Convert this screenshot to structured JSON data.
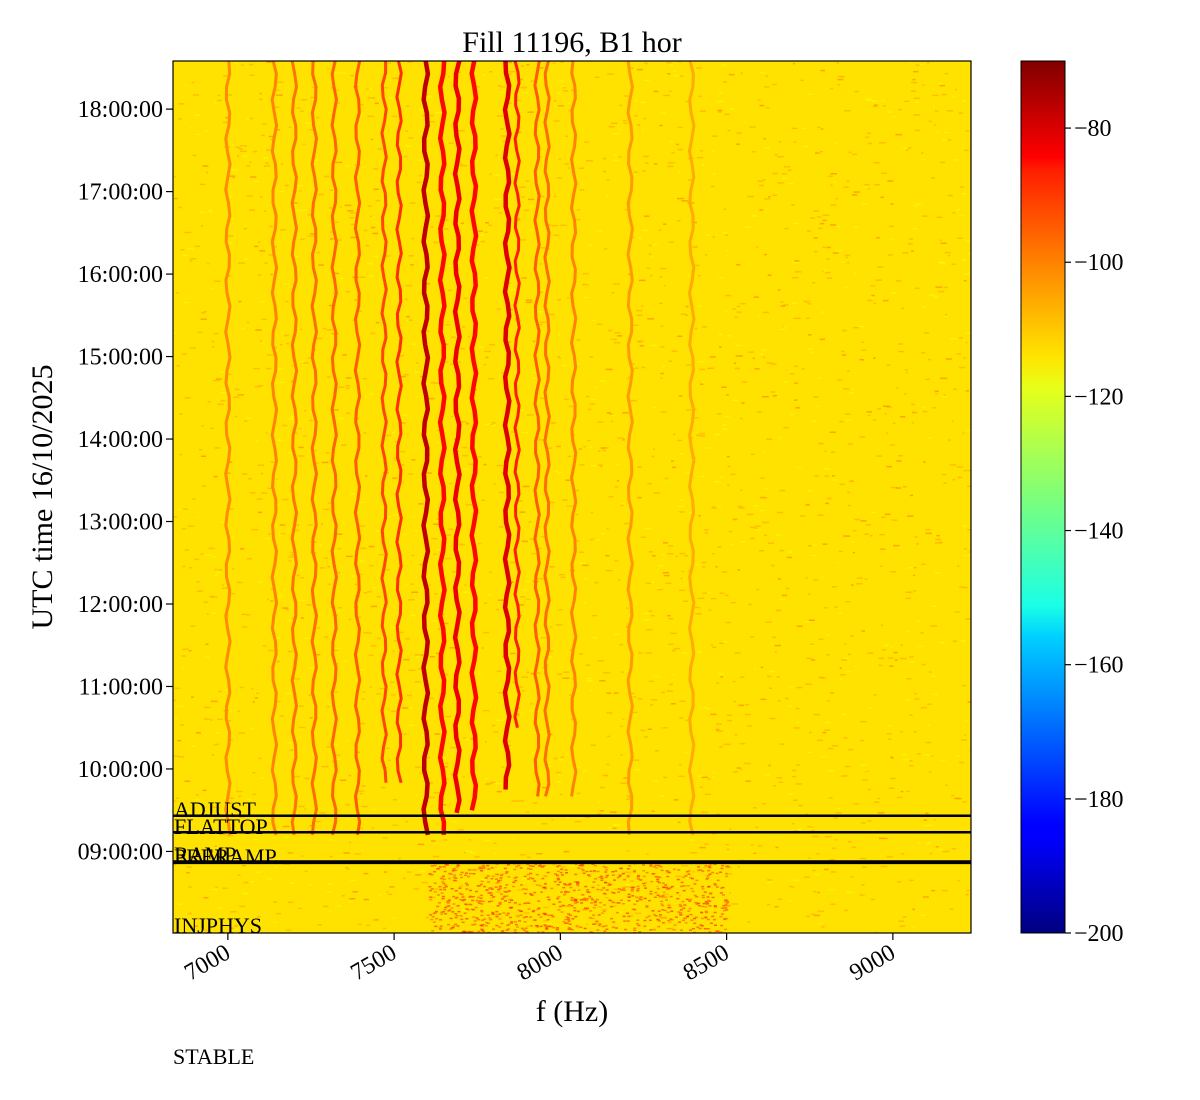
{
  "chart_data": {
    "type": "heatmap",
    "title": "Fill 11196, B1 hor",
    "xlabel": "f (Hz)",
    "ylabel": "UTC time 16/10/2025",
    "xlim": [
      6835,
      9235
    ],
    "ylim": [
      "08:00:40",
      "18:35:00"
    ],
    "x_ticks": [
      7000,
      7500,
      8000,
      8500,
      9000
    ],
    "x_tick_labels": [
      "7000",
      "7500",
      "8000",
      "8500",
      "9000"
    ],
    "y_tick_labels": [
      "09:00:00",
      "10:00:00",
      "11:00:00",
      "12:00:00",
      "13:00:00",
      "14:00:00",
      "15:00:00",
      "16:00:00",
      "17:00:00",
      "18:00:00"
    ],
    "colorbar": {
      "colormap": "jet",
      "range": [
        -200,
        -70
      ],
      "ticks": [
        -200,
        -180,
        -160,
        -140,
        -120,
        -100,
        -80
      ],
      "tick_labels": [
        "−200",
        "−180",
        "−160",
        "−140",
        "−120",
        "−100",
        "−80"
      ]
    },
    "background_level": -115,
    "lines": [
      {
        "f_start": 7595,
        "f_end": 7595,
        "t_start": "09:12:00",
        "level": -78
      },
      {
        "f_start": 7645,
        "f_end": 7645,
        "t_start": "09:12:00",
        "level": -87
      },
      {
        "f_start": 7690,
        "f_end": 7690,
        "t_start": "09:28:00",
        "level": -84
      },
      {
        "f_start": 7740,
        "f_end": 7740,
        "t_start": "09:30:00",
        "level": -87
      },
      {
        "f_start": 7840,
        "f_end": 7840,
        "t_start": "09:45:00",
        "level": -82
      },
      {
        "f_start": 7870,
        "f_end": 7870,
        "t_start": "10:30:00",
        "level": -90
      },
      {
        "f_start": 7515,
        "f_end": 7515,
        "t_start": "09:50:00",
        "level": -92
      },
      {
        "f_start": 7470,
        "f_end": 7470,
        "t_start": "09:50:00",
        "level": -95
      },
      {
        "f_start": 7390,
        "f_end": 7390,
        "t_start": "09:12:00",
        "level": -98
      },
      {
        "f_start": 7320,
        "f_end": 7320,
        "t_start": "09:12:00",
        "level": -99
      },
      {
        "f_start": 7260,
        "f_end": 7260,
        "t_start": "09:12:00",
        "level": -100
      },
      {
        "f_start": 7200,
        "f_end": 7200,
        "t_start": "09:12:00",
        "level": -101
      },
      {
        "f_start": 7140,
        "f_end": 7140,
        "t_start": "09:12:00",
        "level": -103
      },
      {
        "f_start": 7000,
        "f_end": 7000,
        "t_start": "09:12:00",
        "level": -104
      },
      {
        "f_start": 7930,
        "f_end": 7930,
        "t_start": "09:40:00",
        "level": -98
      },
      {
        "f_start": 7960,
        "f_end": 7960,
        "t_start": "09:40:00",
        "level": -100
      },
      {
        "f_start": 8040,
        "f_end": 8040,
        "t_start": "09:40:00",
        "level": -103
      },
      {
        "f_start": 8210,
        "f_end": 8210,
        "t_start": "09:12:00",
        "level": -106
      },
      {
        "f_start": 8395,
        "f_end": 8395,
        "t_start": "09:12:00",
        "level": -108
      }
    ],
    "phase_markers": [
      {
        "label": "ADJUST",
        "time": "09:26:00"
      },
      {
        "label": "FLATTOP",
        "time": "09:14:00"
      },
      {
        "label": "RAMP",
        "time": "08:52:40"
      },
      {
        "label": "PRERAMP",
        "time": "08:51:40"
      },
      {
        "label": "INJPHYS",
        "time": "08:01:00"
      },
      {
        "label": "STABLE",
        "time": "09:27:00"
      }
    ]
  }
}
